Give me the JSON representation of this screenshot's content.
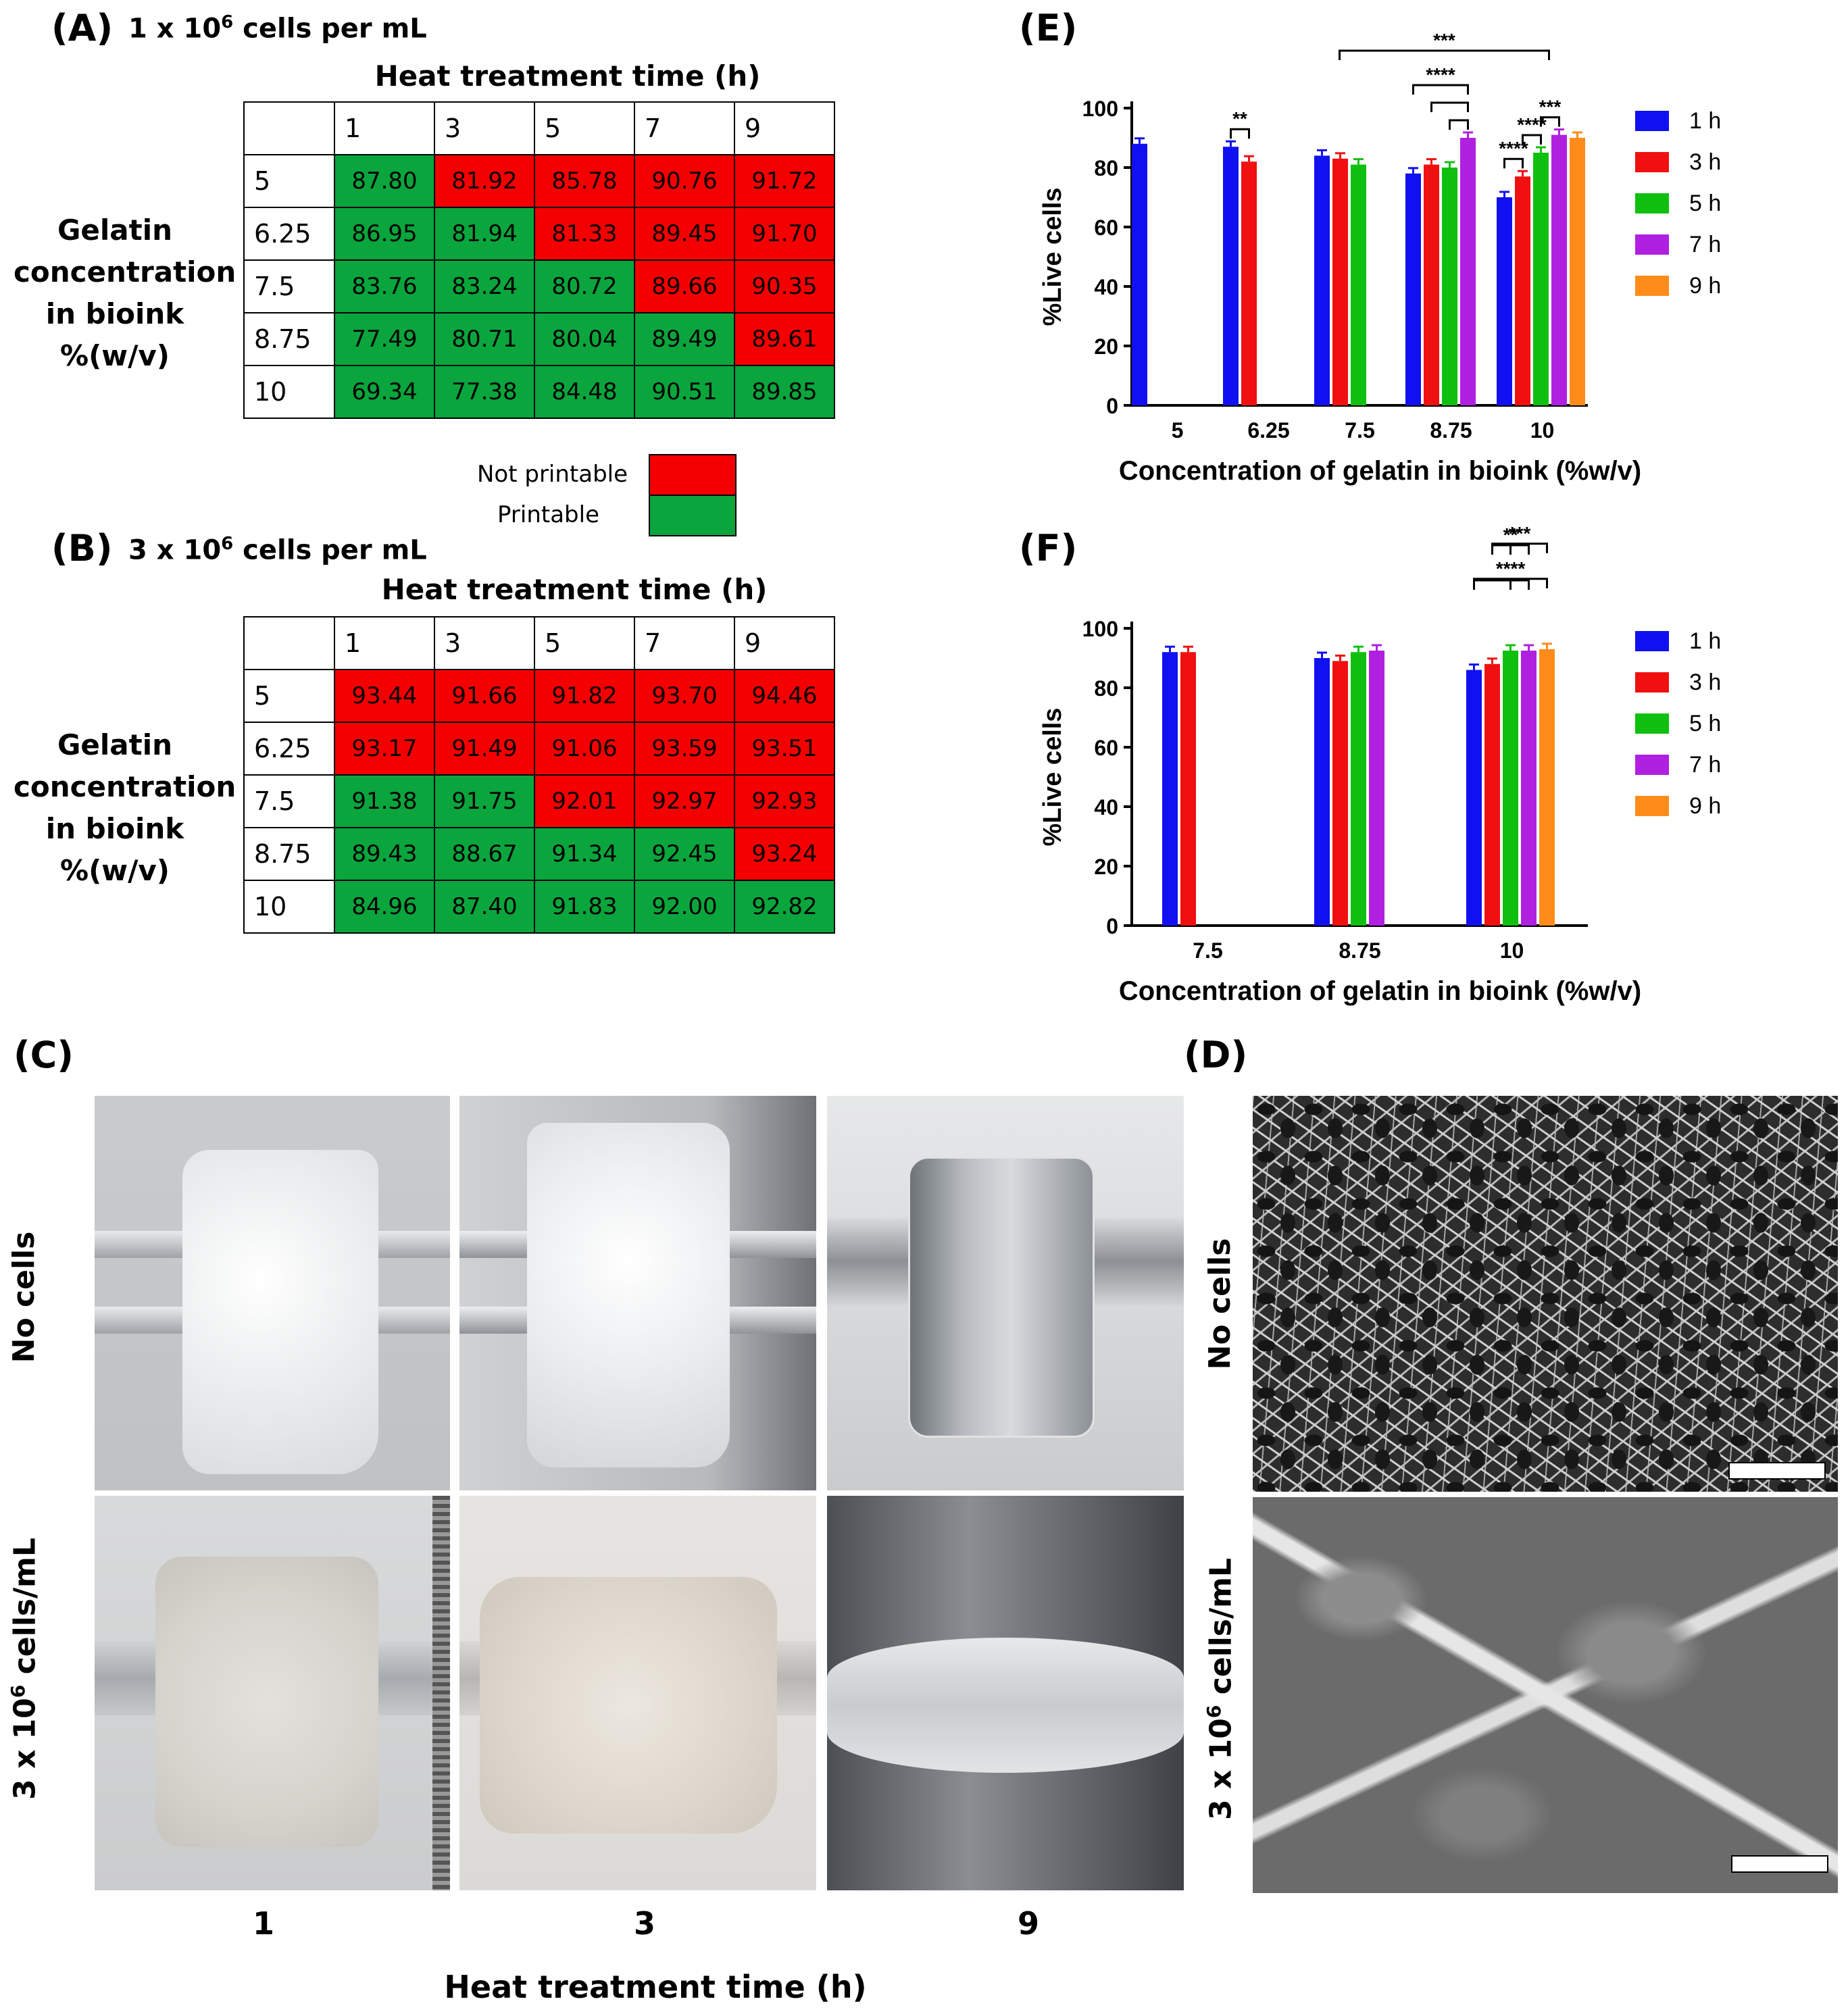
{
  "panel_a": {
    "letter": "(A)",
    "subtitle_pre": "1 x 10",
    "subtitle_sup": "6",
    "subtitle_post": " cells per mL",
    "col_title": "Heat treatment time (h)",
    "row_title": [
      "Gelatin",
      "concentration",
      "in bioink",
      "%(w/v)"
    ],
    "columns": [
      "1",
      "3",
      "5",
      "7",
      "9"
    ],
    "rows": [
      {
        "label": "5",
        "cells": [
          {
            "v": "87.80",
            "s": "pr"
          },
          {
            "v": "81.92",
            "s": "np"
          },
          {
            "v": "85.78",
            "s": "np"
          },
          {
            "v": "90.76",
            "s": "np"
          },
          {
            "v": "91.72",
            "s": "np"
          }
        ]
      },
      {
        "label": "6.25",
        "cells": [
          {
            "v": "86.95",
            "s": "pr"
          },
          {
            "v": "81.94",
            "s": "pr"
          },
          {
            "v": "81.33",
            "s": "np"
          },
          {
            "v": "89.45",
            "s": "np"
          },
          {
            "v": "91.70",
            "s": "np"
          }
        ]
      },
      {
        "label": "7.5",
        "cells": [
          {
            "v": "83.76",
            "s": "pr"
          },
          {
            "v": "83.24",
            "s": "pr"
          },
          {
            "v": "80.72",
            "s": "pr"
          },
          {
            "v": "89.66",
            "s": "np"
          },
          {
            "v": "90.35",
            "s": "np"
          }
        ]
      },
      {
        "label": "8.75",
        "cells": [
          {
            "v": "77.49",
            "s": "pr"
          },
          {
            "v": "80.71",
            "s": "pr"
          },
          {
            "v": "80.04",
            "s": "pr"
          },
          {
            "v": "89.49",
            "s": "pr"
          },
          {
            "v": "89.61",
            "s": "np"
          }
        ]
      },
      {
        "label": "10",
        "cells": [
          {
            "v": "69.34",
            "s": "pr"
          },
          {
            "v": "77.38",
            "s": "pr"
          },
          {
            "v": "84.48",
            "s": "pr"
          },
          {
            "v": "90.51",
            "s": "pr"
          },
          {
            "v": "89.85",
            "s": "pr"
          }
        ]
      }
    ]
  },
  "legend": {
    "not_printable": "Not printable",
    "printable": "Printable",
    "not_printable_color": "#f40000",
    "printable_color": "#0aa53c"
  },
  "panel_b": {
    "letter": "(B)",
    "subtitle_pre": "3 x 10",
    "subtitle_sup": "6",
    "subtitle_post": " cells per mL",
    "col_title": "Heat treatment time (h)",
    "row_title": [
      "Gelatin",
      "concentration",
      "in bioink",
      "%(w/v)"
    ],
    "columns": [
      "1",
      "3",
      "5",
      "7",
      "9"
    ],
    "rows": [
      {
        "label": "5",
        "cells": [
          {
            "v": "93.44",
            "s": "np"
          },
          {
            "v": "91.66",
            "s": "np"
          },
          {
            "v": "91.82",
            "s": "np"
          },
          {
            "v": "93.70",
            "s": "np"
          },
          {
            "v": "94.46",
            "s": "np"
          }
        ]
      },
      {
        "label": "6.25",
        "cells": [
          {
            "v": "93.17",
            "s": "np"
          },
          {
            "v": "91.49",
            "s": "np"
          },
          {
            "v": "91.06",
            "s": "np"
          },
          {
            "v": "93.59",
            "s": "np"
          },
          {
            "v": "93.51",
            "s": "np"
          }
        ]
      },
      {
        "label": "7.5",
        "cells": [
          {
            "v": "91.38",
            "s": "pr"
          },
          {
            "v": "91.75",
            "s": "pr"
          },
          {
            "v": "92.01",
            "s": "np"
          },
          {
            "v": "92.97",
            "s": "np"
          },
          {
            "v": "92.93",
            "s": "np"
          }
        ]
      },
      {
        "label": "8.75",
        "cells": [
          {
            "v": "89.43",
            "s": "pr"
          },
          {
            "v": "88.67",
            "s": "pr"
          },
          {
            "v": "91.34",
            "s": "pr"
          },
          {
            "v": "92.45",
            "s": "pr"
          },
          {
            "v": "93.24",
            "s": "np"
          }
        ]
      },
      {
        "label": "10",
        "cells": [
          {
            "v": "84.96",
            "s": "pr"
          },
          {
            "v": "87.40",
            "s": "pr"
          },
          {
            "v": "91.83",
            "s": "pr"
          },
          {
            "v": "92.00",
            "s": "pr"
          },
          {
            "v": "92.82",
            "s": "pr"
          }
        ]
      }
    ]
  },
  "panel_c": {
    "letter": "(C)",
    "row_label_top": "No cells",
    "row_label_bottom_pre": "3 x 10",
    "row_label_bottom_sup": "6",
    "row_label_bottom_post": " cells/mL",
    "x_categories": [
      "1",
      "3",
      "9"
    ],
    "x_title": "Heat treatment time (h)"
  },
  "panel_d": {
    "letter": "(D)",
    "row_label_top": "No cells",
    "row_label_bottom_pre": "3 x 10",
    "row_label_bottom_sup": "6",
    "row_label_bottom_post": " cells/mL"
  },
  "panel_e": {
    "letter": "(E)"
  },
  "panel_f": {
    "letter": "(F)"
  },
  "chart_data": [
    {
      "type": "bar",
      "id": "E",
      "ylabel": "%Live cells",
      "xlabel": "Concentration of gelatin in bioink (%w/v)",
      "ylim": [
        0,
        100
      ],
      "yticks": [
        "0",
        "20",
        "40",
        "60",
        "80",
        "100"
      ],
      "categories": [
        "5",
        "6.25",
        "7.5",
        "8.75",
        "10"
      ],
      "legend": [
        "1 h",
        "3 h",
        "5 h",
        "7 h",
        "9 h"
      ],
      "colors": [
        "#1010f0",
        "#f01010",
        "#10c010",
        "#b020e0",
        "#ff8c1a"
      ],
      "series": [
        {
          "name": "1 h",
          "values": [
            88,
            87,
            84,
            78,
            70
          ]
        },
        {
          "name": "3 h",
          "values": [
            null,
            82,
            83,
            81,
            77
          ]
        },
        {
          "name": "5 h",
          "values": [
            null,
            null,
            81,
            80,
            85
          ]
        },
        {
          "name": "7 h",
          "values": [
            null,
            null,
            null,
            90,
            91
          ]
        },
        {
          "name": "9 h",
          "values": [
            null,
            null,
            null,
            null,
            90
          ]
        }
      ],
      "significance": [
        {
          "label": "**",
          "group": 1,
          "from": 0,
          "to": 1
        },
        {
          "label": "***",
          "from_group": 2,
          "to_group": 4
        },
        {
          "label": "****",
          "group": 3,
          "from": 0,
          "to": 3
        },
        {
          "label": "",
          "group": 3,
          "from": 1,
          "to": 3
        },
        {
          "label": "",
          "group": 3,
          "from": 2,
          "to": 3
        },
        {
          "label": "****",
          "group": 4,
          "from": 0,
          "to": 1
        },
        {
          "label": "****",
          "group": 4,
          "from": 1,
          "to": 2
        },
        {
          "label": "***",
          "group": 4,
          "from": 2,
          "to": 3
        }
      ]
    },
    {
      "type": "bar",
      "id": "F",
      "ylabel": "%Live cells",
      "xlabel": "Concentration of gelatin in bioink (%w/v)",
      "ylim": [
        0,
        100
      ],
      "yticks": [
        "0",
        "20",
        "40",
        "60",
        "80",
        "100"
      ],
      "categories": [
        "7.5",
        "8.75",
        "10"
      ],
      "legend": [
        "1 h",
        "3 h",
        "5 h",
        "7 h",
        "9 h"
      ],
      "colors": [
        "#1010f0",
        "#f01010",
        "#10c010",
        "#b020e0",
        "#ff8c1a"
      ],
      "series": [
        {
          "name": "1 h",
          "values": [
            92,
            90,
            86
          ]
        },
        {
          "name": "3 h",
          "values": [
            92,
            89,
            88
          ]
        },
        {
          "name": "5 h",
          "values": [
            null,
            92,
            92.5
          ]
        },
        {
          "name": "7 h",
          "values": [
            null,
            92.5,
            92.5
          ]
        },
        {
          "name": "9 h",
          "values": [
            null,
            null,
            93
          ]
        }
      ],
      "significance": [
        {
          "label": "****",
          "group": 2,
          "from": 0,
          "to": 4
        },
        {
          "label": "",
          "group": 2,
          "from": 0,
          "to": 3
        },
        {
          "label": "",
          "group": 2,
          "from": 0,
          "to": 2
        },
        {
          "label": "***",
          "group": 2,
          "from": 1,
          "to": 4
        },
        {
          "label": "**",
          "group": 2,
          "from": 1,
          "to": 3
        },
        {
          "label": "",
          "group": 2,
          "from": 1,
          "to": 2
        }
      ]
    }
  ]
}
